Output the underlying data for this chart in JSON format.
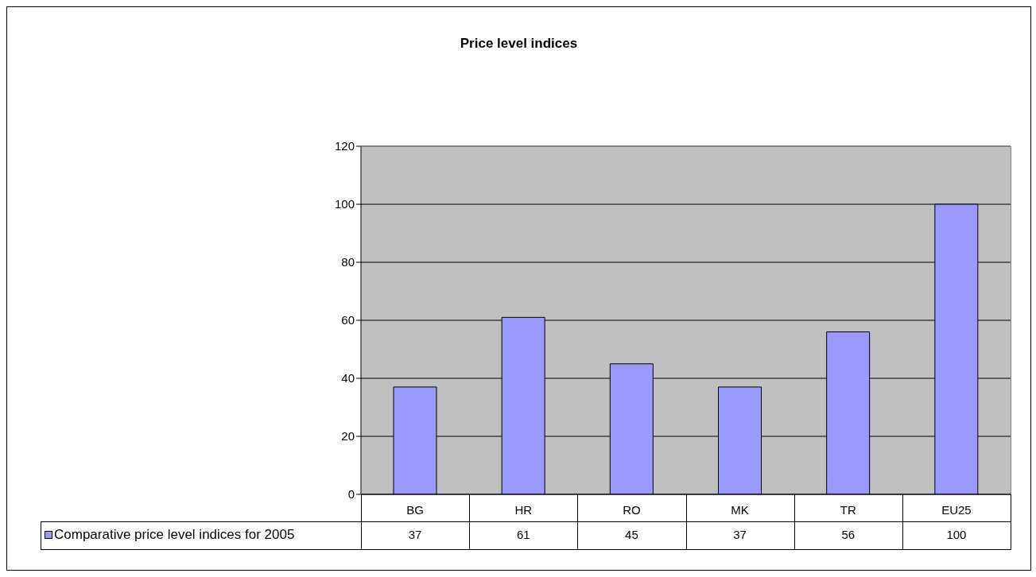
{
  "chart_data": {
    "type": "bar",
    "title": "Price level indices",
    "categories": [
      "BG",
      "HR",
      "RO",
      "MK",
      "TR",
      "EU25"
    ],
    "series": [
      {
        "name": "Comparative price level indices for 2005",
        "color": "#9999ff",
        "values": [
          37,
          61,
          45,
          37,
          56,
          100
        ]
      }
    ],
    "ylim": [
      0,
      120
    ],
    "yticks": [
      0,
      20,
      40,
      60,
      80,
      100,
      120
    ],
    "grid": "y",
    "legend": "bottom left",
    "data_labels": true
  }
}
